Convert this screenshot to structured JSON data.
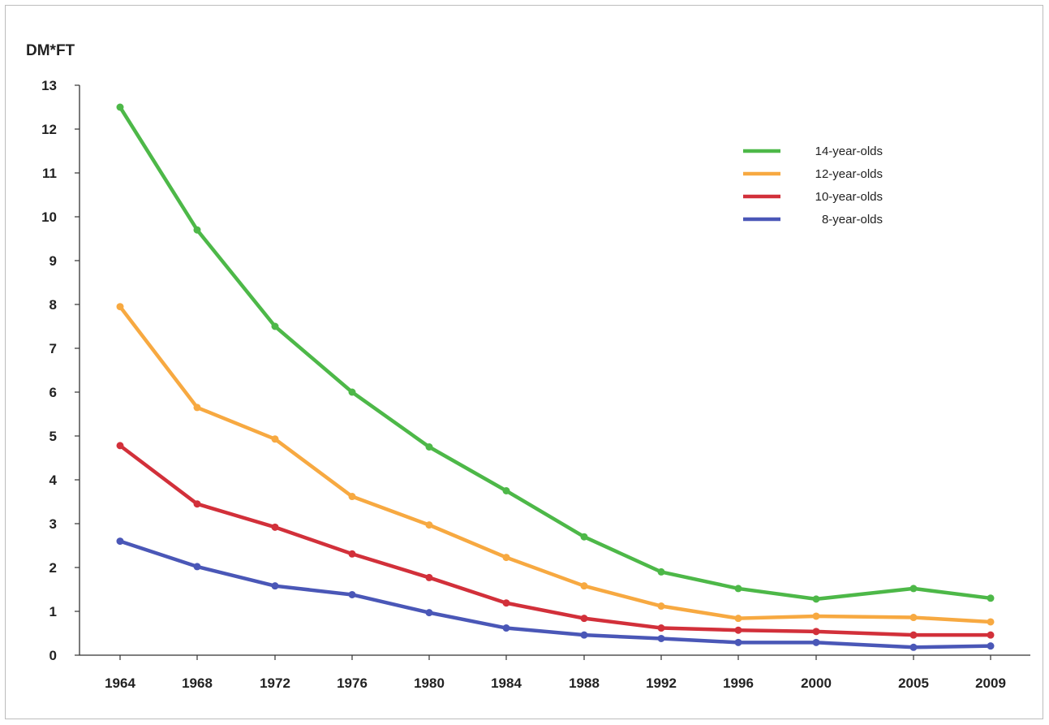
{
  "chart_data": {
    "type": "line",
    "title": "",
    "xlabel": "",
    "ylabel": "DM*FT",
    "categories": [
      "1964",
      "1968",
      "1972",
      "1976",
      "1980",
      "1984",
      "1988",
      "1992",
      "1996",
      "2000",
      "2005",
      "2009"
    ],
    "ylim": [
      0,
      13
    ],
    "yticks": [
      "0",
      "1",
      "2",
      "3",
      "4",
      "5",
      "6",
      "7",
      "8",
      "9",
      "10",
      "11",
      "12",
      "13"
    ],
    "grid": false,
    "legend_position": "top-right",
    "series": [
      {
        "name": "14-year-olds",
        "color": "#4db848",
        "values": [
          12.5,
          9.7,
          7.5,
          6.0,
          4.75,
          3.75,
          2.7,
          1.9,
          1.52,
          1.28,
          1.52,
          1.3
        ]
      },
      {
        "name": "12-year-olds",
        "color": "#f7a941",
        "values": [
          7.95,
          5.65,
          4.93,
          3.62,
          2.97,
          2.23,
          1.58,
          1.12,
          0.84,
          0.89,
          0.86,
          0.76
        ]
      },
      {
        "name": "10-year-olds",
        "color": "#d2303a",
        "values": [
          4.78,
          3.45,
          2.92,
          2.31,
          1.77,
          1.19,
          0.84,
          0.62,
          0.57,
          0.54,
          0.46,
          0.46
        ]
      },
      {
        "name": "8-year-olds",
        "color": "#4a57b7",
        "values": [
          2.6,
          2.02,
          1.58,
          1.38,
          0.97,
          0.62,
          0.46,
          0.38,
          0.29,
          0.29,
          0.18,
          0.21
        ]
      }
    ]
  }
}
